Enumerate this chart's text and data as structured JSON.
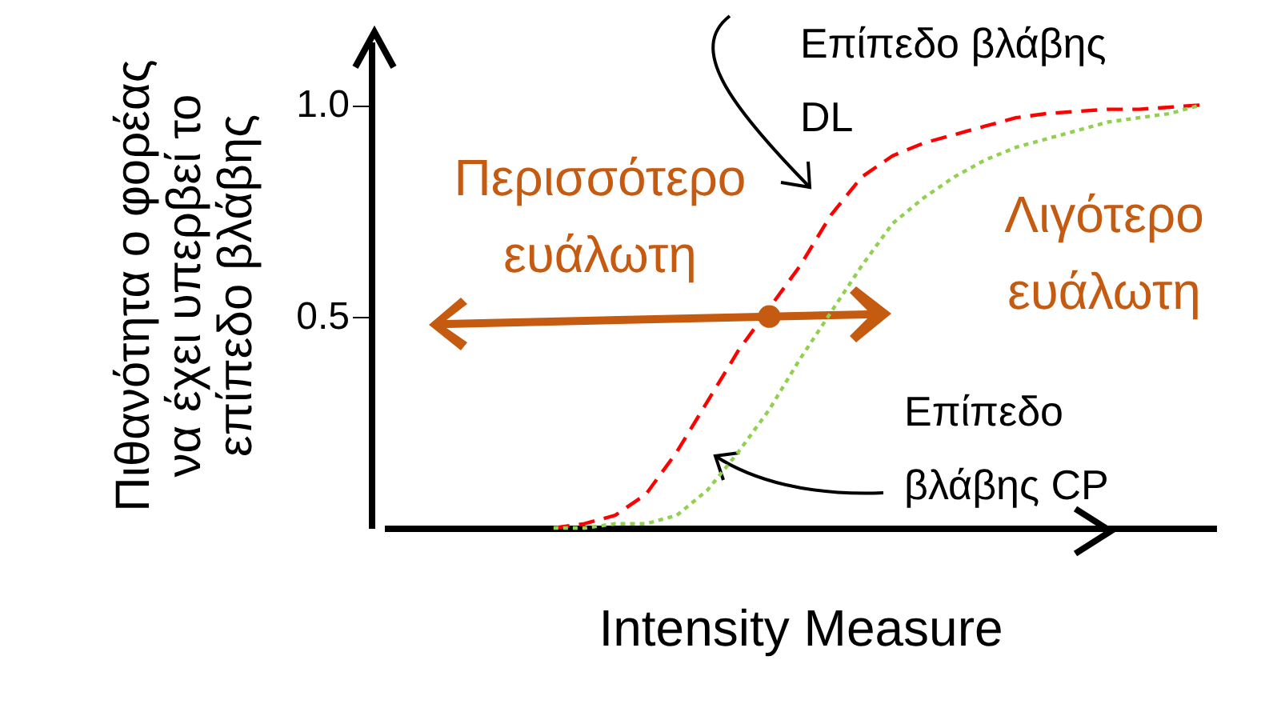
{
  "chart_data": {
    "type": "line",
    "xlabel": "Intensity Measure",
    "ylabel": "Πιθανότητα ο φορέας\nνα έχει υπερβεί το\nεπίπεδο βλάβης",
    "categories": [
      null,
      null,
      null,
      null,
      null,
      null,
      null,
      null,
      null,
      null,
      null,
      null,
      null,
      null,
      null,
      null,
      null,
      null,
      null,
      null,
      null,
      null,
      null,
      null,
      null,
      null,
      null
    ],
    "series": [
      {
        "name": "Επίπεδο βλάβης\nDL",
        "color": "#ff0000",
        "line_style": "dashed",
        "values": [
          null,
          null,
          null,
          null,
          null,
          0,
          0.01,
          0.03,
          0.08,
          0.18,
          0.3,
          0.42,
          0.52,
          0.62,
          0.74,
          0.83,
          0.88,
          0.91,
          0.93,
          0.95,
          0.97,
          0.98,
          0.985,
          0.99,
          0.99,
          0.995,
          1.0
        ]
      },
      {
        "name": "Επίπεδο\nβλάβης CP",
        "color": "#92d050",
        "line_style": "dotted",
        "values": [
          null,
          null,
          null,
          null,
          null,
          0,
          0,
          0.01,
          0.01,
          0.03,
          0.09,
          0.18,
          0.28,
          0.4,
          0.51,
          0.62,
          0.72,
          0.78,
          0.83,
          0.87,
          0.9,
          0.92,
          0.94,
          0.96,
          0.97,
          0.98,
          1.0
        ]
      },
      {
        "type": "scatter",
        "color": "#c55a11",
        "marker": "circle",
        "values": [
          null,
          null,
          null,
          null,
          null,
          null,
          null,
          null,
          null,
          null,
          null,
          null,
          0.5,
          null,
          null,
          null,
          null,
          null,
          null,
          null,
          null,
          null,
          null,
          null,
          null,
          null,
          null
        ]
      }
    ],
    "annotations": [
      "Περισσότερο\nευάλωτη",
      "Λιγότερο\nευάλωτη"
    ],
    "ylim": [
      0,
      1.15
    ],
    "yticks": [
      0.5,
      {
        "value": 1.0,
        "label": "1.0"
      }
    ],
    "tick_labels": "y",
    "grid": false
  }
}
